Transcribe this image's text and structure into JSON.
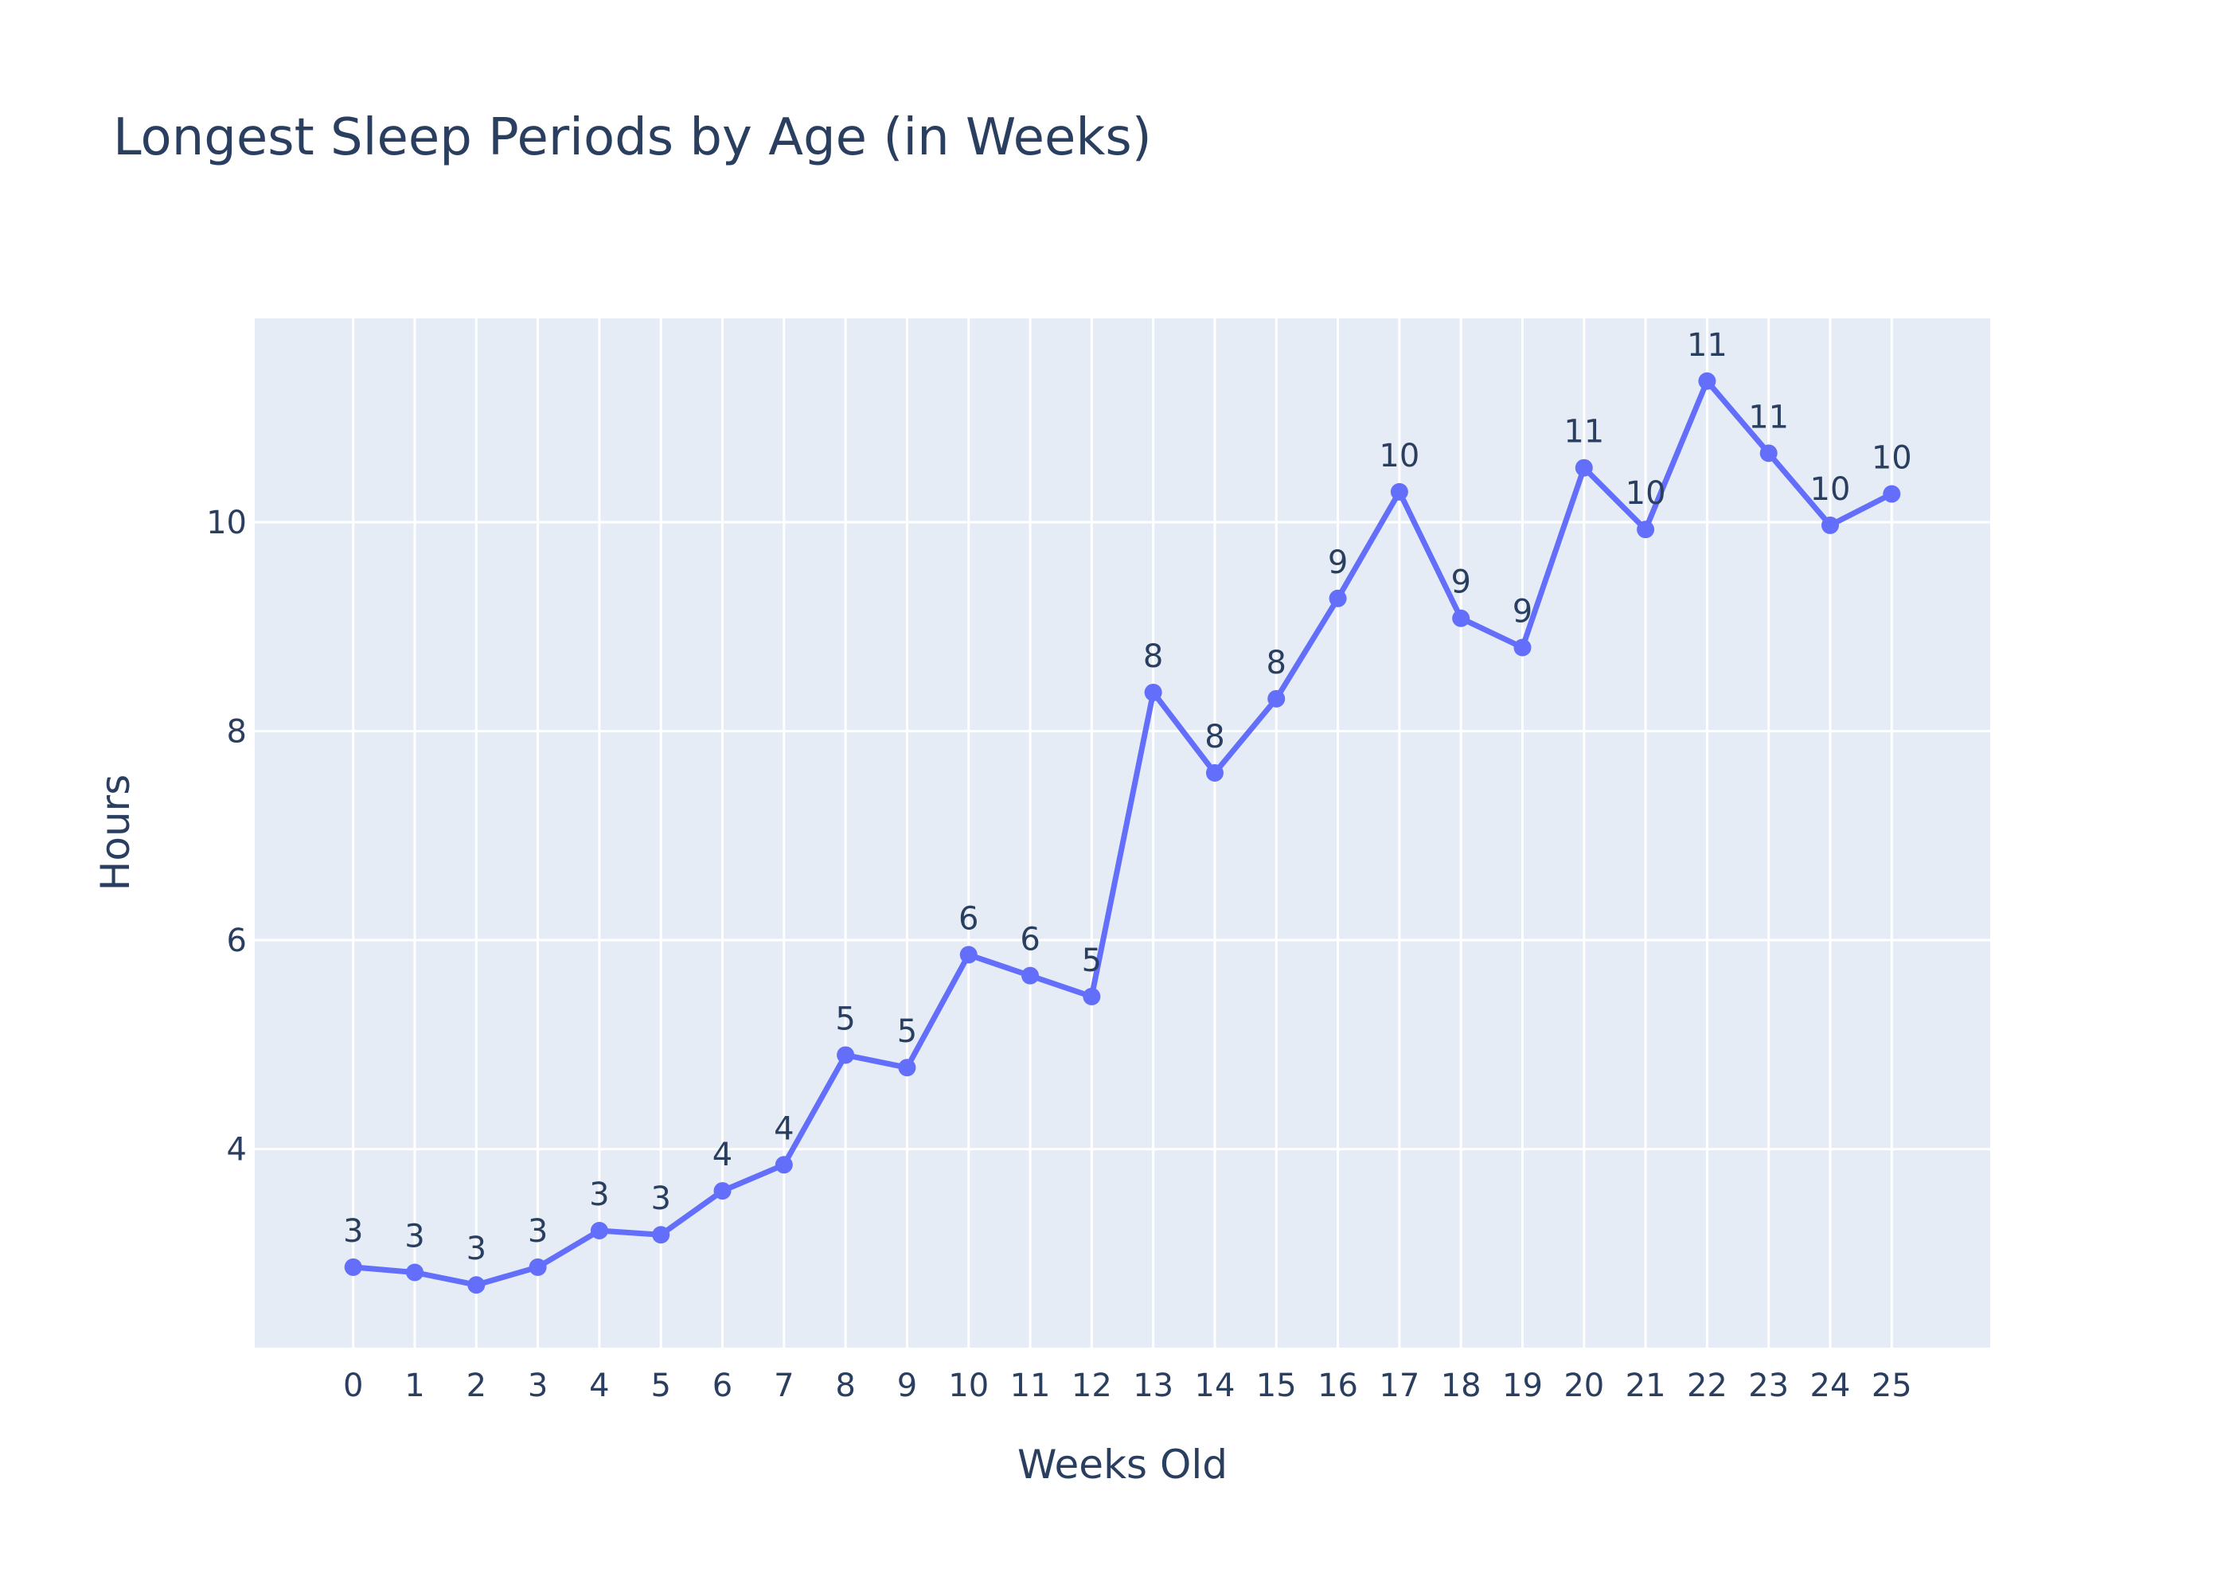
{
  "chart_data": {
    "type": "line",
    "title": "Longest Sleep Periods by Age (in Weeks)",
    "xlabel": "Weeks Old",
    "ylabel": "Hours",
    "x": [
      0,
      1,
      2,
      3,
      4,
      5,
      6,
      7,
      8,
      9,
      10,
      11,
      12,
      13,
      14,
      15,
      16,
      17,
      18,
      19,
      20,
      21,
      22,
      23,
      24,
      25
    ],
    "y": [
      2.87,
      2.82,
      2.7,
      2.87,
      3.22,
      3.18,
      3.6,
      3.85,
      4.9,
      4.78,
      5.86,
      5.66,
      5.46,
      8.37,
      7.6,
      8.31,
      9.27,
      10.29,
      9.08,
      8.8,
      10.52,
      9.93,
      11.35,
      10.66,
      9.97,
      10.27
    ],
    "labels": [
      "3",
      "3",
      "3",
      "3",
      "3",
      "3",
      "4",
      "4",
      "5",
      "5",
      "6",
      "6",
      "5",
      "8",
      "8",
      "8",
      "9",
      "10",
      "9",
      "9",
      "11",
      "10",
      "11",
      "11",
      "10",
      "10"
    ],
    "ylim": [
      2.1,
      11.95
    ],
    "xlim": [
      -1.6,
      26.6
    ],
    "yticks": [
      4,
      6,
      8,
      10
    ],
    "grid": true,
    "colors": {
      "line": "#636efa",
      "plot_bg": "#e5ecf6",
      "grid": "#ffffff",
      "text": "#2a3f5f"
    }
  }
}
